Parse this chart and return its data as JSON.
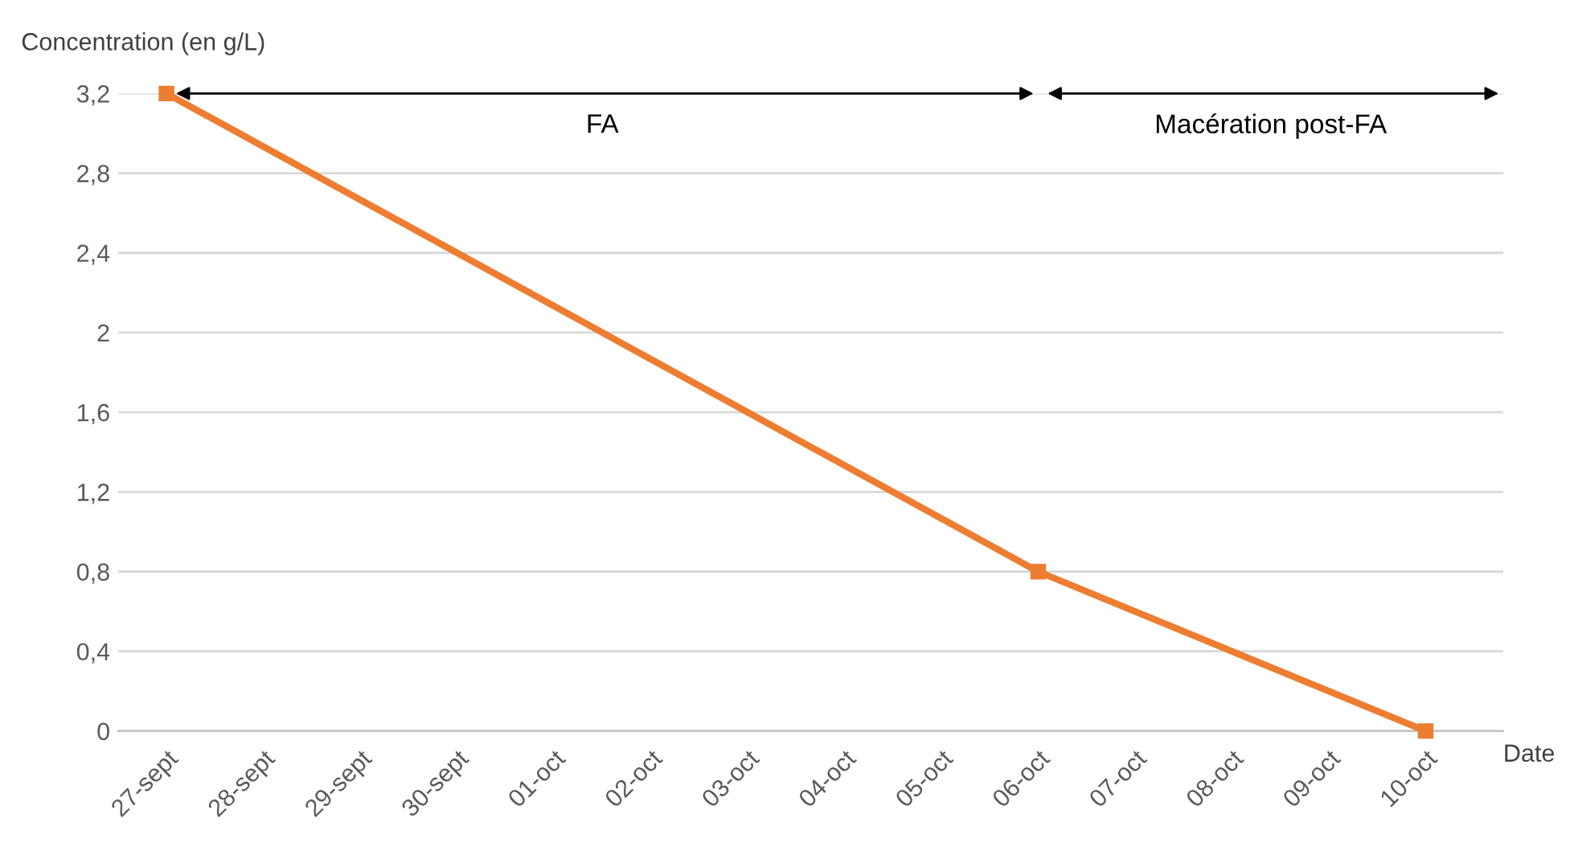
{
  "chart_data": {
    "type": "line",
    "xlabel": "Date",
    "ylabel": "Concentration (en g/L)",
    "categories": [
      "27-sept",
      "28-sept",
      "29-sept",
      "30-sept",
      "01-oct",
      "02-oct",
      "03-oct",
      "04-oct",
      "05-oct",
      "06-oct",
      "07-oct",
      "08-oct",
      "09-oct",
      "10-oct"
    ],
    "series": [
      {
        "color": "#ed7d31",
        "values": [
          3.2,
          null,
          null,
          null,
          null,
          null,
          null,
          null,
          null,
          0.8,
          null,
          null,
          null,
          0
        ]
      }
    ],
    "ylim": [
      0,
      3.2
    ],
    "yticks": [
      0,
      {
        "value": 0.4,
        "label": "0,4"
      },
      {
        "value": 0.8,
        "label": "0,8"
      },
      {
        "value": 1.2,
        "label": "1,2"
      },
      {
        "value": 1.6,
        "label": "1,6"
      },
      2,
      {
        "value": 2.4,
        "label": "2,4"
      },
      {
        "value": 2.8,
        "label": "2,8"
      },
      {
        "value": 3.2,
        "label": "3,2"
      }
    ],
    "annotations": [
      "FA",
      "Macération post-FA"
    ],
    "grid": "y",
    "marker": "square",
    "line_style": "solid",
    "legend": false
  }
}
